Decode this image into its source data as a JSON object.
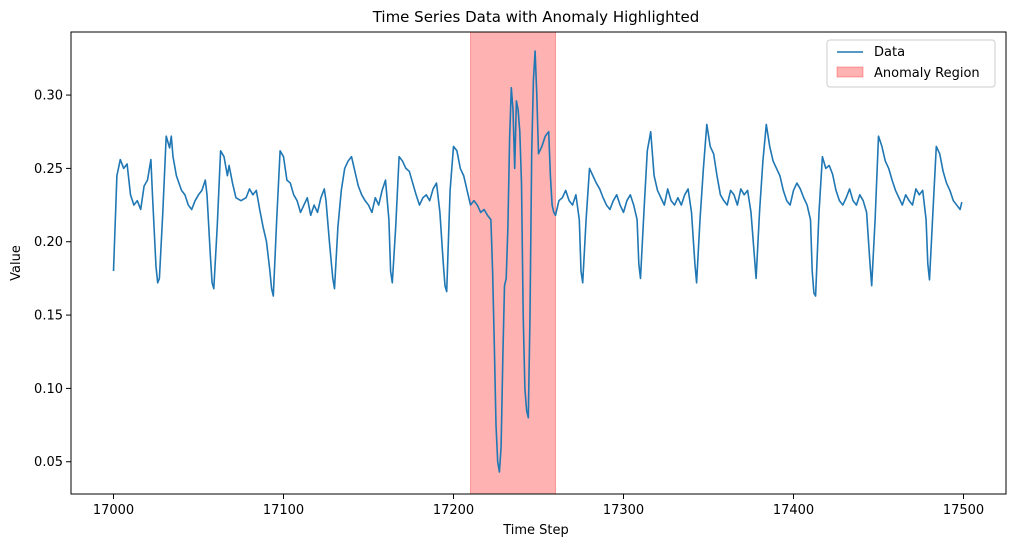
{
  "chart_data": {
    "type": "line",
    "title": "Time Series Data with Anomaly Highlighted",
    "xlabel": "Time Step",
    "ylabel": "Value",
    "xlim": [
      16975,
      17525
    ],
    "ylim": [
      0.028,
      0.343
    ],
    "xticks": [
      17000,
      17100,
      17200,
      17300,
      17400,
      17500
    ],
    "xtick_labels": [
      "17000",
      "17100",
      "17200",
      "17300",
      "17400",
      "17500"
    ],
    "yticks": [
      0.05,
      0.1,
      0.15,
      0.2,
      0.25,
      0.3
    ],
    "ytick_labels": [
      "0.05",
      "0.10",
      "0.15",
      "0.20",
      "0.25",
      "0.30"
    ],
    "grid": false,
    "legend_position": "top-right",
    "legend": [
      {
        "label": "Data",
        "kind": "line",
        "color": "#1f77b4"
      },
      {
        "label": "Anomaly Region",
        "kind": "patch",
        "color": "#ff0000"
      }
    ],
    "anomaly_region": {
      "x_start": 17210,
      "x_end": 17260,
      "color": "#ff0000",
      "alpha": 0.3
    },
    "series": [
      {
        "name": "Data",
        "color": "#1f77b4",
        "points": [
          [
            17000,
            0.18
          ],
          [
            17002,
            0.245
          ],
          [
            17004,
            0.256
          ],
          [
            17006,
            0.25
          ],
          [
            17008,
            0.253
          ],
          [
            17010,
            0.232
          ],
          [
            17012,
            0.225
          ],
          [
            17014,
            0.228
          ],
          [
            17016,
            0.222
          ],
          [
            17018,
            0.238
          ],
          [
            17020,
            0.242
          ],
          [
            17022,
            0.256
          ],
          [
            17023,
            0.23
          ],
          [
            17025,
            0.183
          ],
          [
            17026,
            0.172
          ],
          [
            17027,
            0.175
          ],
          [
            17029,
            0.22
          ],
          [
            17031,
            0.272
          ],
          [
            17033,
            0.264
          ],
          [
            17034,
            0.272
          ],
          [
            17035,
            0.258
          ],
          [
            17037,
            0.245
          ],
          [
            17040,
            0.235
          ],
          [
            17042,
            0.232
          ],
          [
            17044,
            0.225
          ],
          [
            17046,
            0.222
          ],
          [
            17048,
            0.228
          ],
          [
            17050,
            0.232
          ],
          [
            17052,
            0.235
          ],
          [
            17054,
            0.242
          ],
          [
            17055,
            0.232
          ],
          [
            17057,
            0.19
          ],
          [
            17058,
            0.172
          ],
          [
            17059,
            0.168
          ],
          [
            17061,
            0.21
          ],
          [
            17063,
            0.262
          ],
          [
            17065,
            0.258
          ],
          [
            17067,
            0.245
          ],
          [
            17068,
            0.252
          ],
          [
            17070,
            0.24
          ],
          [
            17072,
            0.23
          ],
          [
            17075,
            0.228
          ],
          [
            17078,
            0.23
          ],
          [
            17080,
            0.236
          ],
          [
            17082,
            0.232
          ],
          [
            17084,
            0.235
          ],
          [
            17086,
            0.222
          ],
          [
            17088,
            0.21
          ],
          [
            17090,
            0.2
          ],
          [
            17092,
            0.18
          ],
          [
            17093,
            0.168
          ],
          [
            17094,
            0.163
          ],
          [
            17096,
            0.215
          ],
          [
            17098,
            0.262
          ],
          [
            17100,
            0.258
          ],
          [
            17102,
            0.242
          ],
          [
            17104,
            0.24
          ],
          [
            17106,
            0.232
          ],
          [
            17108,
            0.228
          ],
          [
            17110,
            0.22
          ],
          [
            17112,
            0.225
          ],
          [
            17114,
            0.23
          ],
          [
            17116,
            0.218
          ],
          [
            17118,
            0.225
          ],
          [
            17120,
            0.22
          ],
          [
            17122,
            0.23
          ],
          [
            17124,
            0.236
          ],
          [
            17125,
            0.228
          ],
          [
            17127,
            0.2
          ],
          [
            17129,
            0.175
          ],
          [
            17130,
            0.168
          ],
          [
            17132,
            0.21
          ],
          [
            17134,
            0.235
          ],
          [
            17136,
            0.25
          ],
          [
            17138,
            0.255
          ],
          [
            17140,
            0.258
          ],
          [
            17142,
            0.248
          ],
          [
            17144,
            0.238
          ],
          [
            17146,
            0.232
          ],
          [
            17148,
            0.228
          ],
          [
            17150,
            0.225
          ],
          [
            17152,
            0.22
          ],
          [
            17154,
            0.23
          ],
          [
            17156,
            0.225
          ],
          [
            17158,
            0.235
          ],
          [
            17160,
            0.242
          ],
          [
            17162,
            0.215
          ],
          [
            17163,
            0.18
          ],
          [
            17164,
            0.172
          ],
          [
            17166,
            0.21
          ],
          [
            17168,
            0.258
          ],
          [
            17170,
            0.255
          ],
          [
            17172,
            0.25
          ],
          [
            17174,
            0.248
          ],
          [
            17176,
            0.24
          ],
          [
            17178,
            0.232
          ],
          [
            17180,
            0.225
          ],
          [
            17182,
            0.23
          ],
          [
            17184,
            0.232
          ],
          [
            17186,
            0.228
          ],
          [
            17188,
            0.236
          ],
          [
            17190,
            0.24
          ],
          [
            17192,
            0.22
          ],
          [
            17194,
            0.185
          ],
          [
            17195,
            0.17
          ],
          [
            17196,
            0.166
          ],
          [
            17198,
            0.235
          ],
          [
            17200,
            0.265
          ],
          [
            17202,
            0.262
          ],
          [
            17204,
            0.25
          ],
          [
            17206,
            0.245
          ],
          [
            17208,
            0.235
          ],
          [
            17210,
            0.225
          ],
          [
            17212,
            0.228
          ],
          [
            17214,
            0.225
          ],
          [
            17216,
            0.22
          ],
          [
            17218,
            0.222
          ],
          [
            17220,
            0.218
          ],
          [
            17222,
            0.215
          ],
          [
            17223,
            0.18
          ],
          [
            17224,
            0.13
          ],
          [
            17225,
            0.075
          ],
          [
            17226,
            0.05
          ],
          [
            17227,
            0.043
          ],
          [
            17228,
            0.06
          ],
          [
            17229,
            0.12
          ],
          [
            17230,
            0.17
          ],
          [
            17231,
            0.175
          ],
          [
            17232,
            0.21
          ],
          [
            17233,
            0.27
          ],
          [
            17234,
            0.305
          ],
          [
            17235,
            0.29
          ],
          [
            17236,
            0.25
          ],
          [
            17237,
            0.296
          ],
          [
            17238,
            0.29
          ],
          [
            17239,
            0.275
          ],
          [
            17240,
            0.24
          ],
          [
            17241,
            0.15
          ],
          [
            17242,
            0.1
          ],
          [
            17243,
            0.085
          ],
          [
            17244,
            0.08
          ],
          [
            17245,
            0.15
          ],
          [
            17246,
            0.26
          ],
          [
            17247,
            0.31
          ],
          [
            17248,
            0.33
          ],
          [
            17249,
            0.3
          ],
          [
            17250,
            0.26
          ],
          [
            17252,
            0.265
          ],
          [
            17254,
            0.272
          ],
          [
            17256,
            0.275
          ],
          [
            17257,
            0.245
          ],
          [
            17258,
            0.225
          ],
          [
            17259,
            0.22
          ],
          [
            17260,
            0.218
          ],
          [
            17262,
            0.228
          ],
          [
            17264,
            0.23
          ],
          [
            17266,
            0.235
          ],
          [
            17268,
            0.228
          ],
          [
            17270,
            0.225
          ],
          [
            17272,
            0.232
          ],
          [
            17274,
            0.215
          ],
          [
            17275,
            0.18
          ],
          [
            17276,
            0.172
          ],
          [
            17278,
            0.215
          ],
          [
            17280,
            0.25
          ],
          [
            17282,
            0.245
          ],
          [
            17284,
            0.24
          ],
          [
            17286,
            0.236
          ],
          [
            17288,
            0.23
          ],
          [
            17290,
            0.225
          ],
          [
            17292,
            0.222
          ],
          [
            17294,
            0.228
          ],
          [
            17296,
            0.232
          ],
          [
            17298,
            0.225
          ],
          [
            17300,
            0.22
          ],
          [
            17302,
            0.228
          ],
          [
            17304,
            0.232
          ],
          [
            17306,
            0.225
          ],
          [
            17308,
            0.215
          ],
          [
            17309,
            0.185
          ],
          [
            17310,
            0.175
          ],
          [
            17312,
            0.22
          ],
          [
            17314,
            0.262
          ],
          [
            17316,
            0.275
          ],
          [
            17318,
            0.245
          ],
          [
            17320,
            0.235
          ],
          [
            17322,
            0.23
          ],
          [
            17324,
            0.225
          ],
          [
            17326,
            0.236
          ],
          [
            17328,
            0.228
          ],
          [
            17330,
            0.225
          ],
          [
            17332,
            0.23
          ],
          [
            17334,
            0.225
          ],
          [
            17336,
            0.232
          ],
          [
            17338,
            0.236
          ],
          [
            17340,
            0.22
          ],
          [
            17342,
            0.185
          ],
          [
            17343,
            0.172
          ],
          [
            17345,
            0.215
          ],
          [
            17347,
            0.25
          ],
          [
            17349,
            0.28
          ],
          [
            17351,
            0.265
          ],
          [
            17353,
            0.26
          ],
          [
            17355,
            0.245
          ],
          [
            17357,
            0.232
          ],
          [
            17359,
            0.228
          ],
          [
            17361,
            0.225
          ],
          [
            17363,
            0.235
          ],
          [
            17365,
            0.232
          ],
          [
            17367,
            0.225
          ],
          [
            17369,
            0.236
          ],
          [
            17371,
            0.232
          ],
          [
            17373,
            0.235
          ],
          [
            17375,
            0.22
          ],
          [
            17377,
            0.19
          ],
          [
            17378,
            0.175
          ],
          [
            17380,
            0.22
          ],
          [
            17382,
            0.255
          ],
          [
            17384,
            0.28
          ],
          [
            17386,
            0.265
          ],
          [
            17388,
            0.255
          ],
          [
            17390,
            0.25
          ],
          [
            17392,
            0.245
          ],
          [
            17394,
            0.235
          ],
          [
            17396,
            0.228
          ],
          [
            17398,
            0.225
          ],
          [
            17400,
            0.235
          ],
          [
            17402,
            0.24
          ],
          [
            17404,
            0.236
          ],
          [
            17406,
            0.23
          ],
          [
            17408,
            0.225
          ],
          [
            17410,
            0.215
          ],
          [
            17411,
            0.18
          ],
          [
            17412,
            0.165
          ],
          [
            17413,
            0.163
          ],
          [
            17415,
            0.22
          ],
          [
            17417,
            0.258
          ],
          [
            17419,
            0.25
          ],
          [
            17421,
            0.252
          ],
          [
            17423,
            0.246
          ],
          [
            17425,
            0.235
          ],
          [
            17427,
            0.228
          ],
          [
            17429,
            0.225
          ],
          [
            17431,
            0.23
          ],
          [
            17433,
            0.236
          ],
          [
            17435,
            0.228
          ],
          [
            17437,
            0.225
          ],
          [
            17439,
            0.232
          ],
          [
            17441,
            0.228
          ],
          [
            17443,
            0.22
          ],
          [
            17445,
            0.185
          ],
          [
            17446,
            0.17
          ],
          [
            17448,
            0.215
          ],
          [
            17450,
            0.272
          ],
          [
            17452,
            0.265
          ],
          [
            17454,
            0.255
          ],
          [
            17456,
            0.25
          ],
          [
            17458,
            0.242
          ],
          [
            17460,
            0.235
          ],
          [
            17462,
            0.23
          ],
          [
            17464,
            0.225
          ],
          [
            17466,
            0.232
          ],
          [
            17468,
            0.228
          ],
          [
            17470,
            0.225
          ],
          [
            17472,
            0.236
          ],
          [
            17474,
            0.232
          ],
          [
            17476,
            0.235
          ],
          [
            17478,
            0.215
          ],
          [
            17479,
            0.185
          ],
          [
            17480,
            0.174
          ],
          [
            17482,
            0.22
          ],
          [
            17484,
            0.265
          ],
          [
            17486,
            0.26
          ],
          [
            17488,
            0.248
          ],
          [
            17490,
            0.24
          ],
          [
            17492,
            0.235
          ],
          [
            17494,
            0.228
          ],
          [
            17496,
            0.225
          ],
          [
            17498,
            0.222
          ],
          [
            17499,
            0.227
          ]
        ]
      }
    ]
  }
}
